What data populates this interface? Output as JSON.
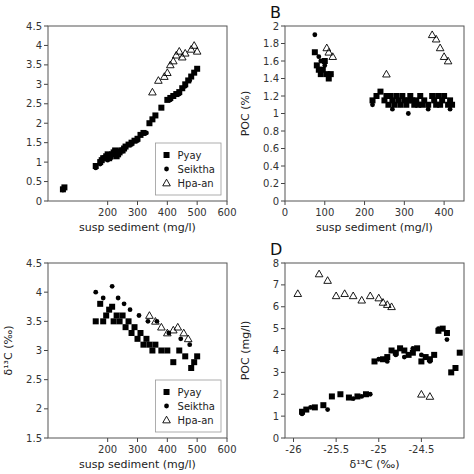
{
  "chart_data": [
    {
      "type": "scatter",
      "xlabel": "susp sediment (mg/l)",
      "xlim": [
        0,
        600
      ],
      "xticks": [
        200,
        300,
        400,
        500,
        600
      ],
      "ylim": [
        0,
        4.5
      ],
      "yticks": [
        0,
        0.5,
        1,
        1.5,
        2,
        2.5,
        3,
        3.5,
        4,
        4.5
      ],
      "grid": false,
      "legend": "lower right",
      "series": [
        {
          "name": "Pyay",
          "color": "#000000",
          "marker": "square",
          "x": [
            50,
            55,
            160,
            175,
            180,
            185,
            190,
            195,
            200,
            205,
            210,
            215,
            220,
            225,
            230,
            235,
            240,
            245,
            250,
            255,
            260,
            270,
            280,
            290,
            300,
            310,
            320,
            340,
            350,
            360,
            380,
            400,
            410,
            420,
            430,
            440,
            450,
            460,
            470,
            480,
            490,
            500
          ],
          "values": [
            0.3,
            0.35,
            0.9,
            1.0,
            1.05,
            1.1,
            1.1,
            1.15,
            1.2,
            1.1,
            1.15,
            1.2,
            1.25,
            1.3,
            1.15,
            1.2,
            1.25,
            1.3,
            1.3,
            1.35,
            1.4,
            1.45,
            1.5,
            1.55,
            1.6,
            1.7,
            1.75,
            2.0,
            2.1,
            2.2,
            2.4,
            2.6,
            2.65,
            2.7,
            2.75,
            2.8,
            2.9,
            3.0,
            3.1,
            3.2,
            3.3,
            3.4
          ]
        },
        {
          "name": "Seiktha",
          "color": "#000000",
          "marker": "circle",
          "x": [
            50,
            160,
            175,
            200,
            210,
            225,
            240,
            260,
            280,
            300,
            330,
            360,
            410,
            440,
            460,
            475
          ],
          "values": [
            0.28,
            0.85,
            0.95,
            1.05,
            1.1,
            1.25,
            1.28,
            1.38,
            1.45,
            1.55,
            1.75,
            2.2,
            2.6,
            2.75,
            2.95,
            3.1
          ]
        },
        {
          "name": "Hpa-an",
          "color": "#000000",
          "marker": "open-triangle",
          "x": [
            350,
            370,
            390,
            400,
            410,
            420,
            430,
            440,
            450,
            460,
            480,
            490,
            500
          ],
          "values": [
            2.8,
            3.1,
            3.2,
            3.3,
            3.5,
            3.6,
            3.75,
            3.85,
            3.7,
            3.8,
            3.9,
            4.0,
            3.85
          ]
        }
      ]
    },
    {
      "type": "scatter",
      "title": "B",
      "xlabel": "susp sediment (mg/l)",
      "ylabel": "POC (%)",
      "xlim": [
        0,
        450
      ],
      "xticks": [
        0,
        100,
        200,
        300,
        400
      ],
      "ylim": [
        0,
        2
      ],
      "yticks": [
        0,
        0.2,
        0.4,
        0.6,
        0.8,
        1,
        1.2,
        1.4,
        1.6,
        1.8,
        2
      ],
      "grid": false,
      "series": [
        {
          "name": "Pyay",
          "color": "#000000",
          "marker": "square",
          "x": [
            75,
            80,
            85,
            90,
            95,
            100,
            105,
            110,
            115,
            220,
            230,
            240,
            250,
            255,
            260,
            265,
            270,
            275,
            280,
            285,
            290,
            295,
            300,
            305,
            310,
            315,
            320,
            325,
            330,
            335,
            340,
            345,
            350,
            360,
            370,
            375,
            380,
            385,
            390,
            395,
            400,
            410,
            415,
            420
          ],
          "values": [
            1.7,
            1.55,
            1.5,
            1.45,
            1.5,
            1.6,
            1.45,
            1.4,
            1.45,
            1.15,
            1.2,
            1.25,
            1.15,
            1.2,
            1.1,
            1.2,
            1.15,
            1.1,
            1.2,
            1.15,
            1.1,
            1.2,
            1.15,
            1.1,
            1.15,
            1.2,
            1.15,
            1.1,
            1.15,
            1.1,
            1.2,
            1.1,
            1.15,
            1.1,
            1.2,
            1.15,
            1.1,
            1.2,
            1.1,
            1.15,
            1.2,
            1.1,
            1.15,
            1.1
          ]
        },
        {
          "name": "Seiktha",
          "color": "#000000",
          "marker": "circle",
          "x": [
            75,
            85,
            90,
            100,
            110,
            115,
            220,
            250,
            270,
            290,
            310,
            330,
            360,
            390,
            415
          ],
          "values": [
            1.9,
            1.65,
            1.6,
            1.55,
            1.45,
            1.45,
            1.1,
            1.15,
            1.05,
            1.1,
            1.0,
            1.1,
            1.05,
            1.1,
            1.05
          ]
        },
        {
          "name": "Hpa-an",
          "color": "#000000",
          "marker": "open-triangle",
          "x": [
            105,
            110,
            120,
            255,
            370,
            380,
            390,
            400,
            410
          ],
          "values": [
            1.75,
            1.7,
            1.65,
            1.45,
            1.9,
            1.85,
            1.75,
            1.65,
            1.6
          ]
        }
      ]
    },
    {
      "type": "scatter",
      "xlabel": "susp sediment (mg/l)",
      "ylabel": "δ¹³C (‰)",
      "xlim": [
        0,
        600
      ],
      "xticks": [
        200,
        300,
        400,
        500,
        600
      ],
      "ylim": [
        1.5,
        4.5
      ],
      "yticks": [
        1.5,
        2,
        2.5,
        3,
        3.5,
        4,
        4.5
      ],
      "grid": false,
      "legend": "lower right",
      "series": [
        {
          "name": "Pyay",
          "color": "#000000",
          "marker": "square",
          "x": [
            160,
            175,
            185,
            195,
            205,
            215,
            220,
            230,
            240,
            250,
            260,
            270,
            280,
            290,
            300,
            310,
            320,
            330,
            340,
            350,
            360,
            380,
            400,
            420,
            440,
            460,
            480,
            490,
            500
          ],
          "values": [
            3.5,
            3.8,
            3.5,
            3.6,
            3.7,
            3.75,
            3.5,
            3.6,
            3.5,
            3.6,
            3.4,
            3.5,
            3.3,
            3.4,
            3.2,
            3.3,
            3.1,
            3.2,
            3.1,
            3.0,
            3.1,
            3.0,
            3.0,
            2.8,
            3.0,
            2.9,
            2.7,
            2.8,
            2.9
          ]
        },
        {
          "name": "Seiktha",
          "color": "#000000",
          "marker": "circle",
          "x": [
            160,
            185,
            215,
            235,
            255,
            275,
            305,
            335,
            365,
            405,
            445,
            475
          ],
          "values": [
            4.0,
            3.9,
            4.1,
            3.9,
            3.8,
            3.7,
            3.6,
            3.5,
            3.5,
            3.3,
            3.2,
            3.1
          ]
        },
        {
          "name": "Hpa-an",
          "color": "#000000",
          "marker": "open-triangle",
          "x": [
            340,
            360,
            380,
            400,
            420,
            435,
            455,
            470
          ],
          "values": [
            3.6,
            3.5,
            3.4,
            3.3,
            3.35,
            3.4,
            3.3,
            3.2
          ]
        }
      ]
    },
    {
      "type": "scatter",
      "title": "D",
      "xlabel": "δ¹³C (‰)",
      "ylabel": "POC (mg/l)",
      "xlim": [
        -26.1,
        -24.0
      ],
      "xticks": [
        -26,
        -25.5,
        -25,
        -24.5
      ],
      "ylim": [
        0,
        8
      ],
      "yticks": [
        0,
        1,
        2,
        3,
        4,
        5,
        6,
        7,
        8
      ],
      "grid": false,
      "series": [
        {
          "name": "Pyay",
          "color": "#000000",
          "marker": "square",
          "x": [
            -25.9,
            -25.85,
            -25.75,
            -25.65,
            -25.55,
            -25.45,
            -25.35,
            -25.25,
            -25.15,
            -25.05,
            -24.95,
            -24.9,
            -24.85,
            -24.8,
            -24.75,
            -24.7,
            -24.65,
            -24.6,
            -24.55,
            -24.5,
            -24.45,
            -24.4,
            -24.35,
            -24.3,
            -24.25,
            -24.2,
            -24.15,
            -24.1,
            -24.05
          ],
          "values": [
            1.2,
            1.3,
            1.4,
            1.5,
            1.9,
            2.0,
            1.85,
            1.9,
            2.0,
            3.5,
            3.6,
            3.7,
            4.0,
            3.9,
            4.1,
            4.0,
            3.8,
            3.9,
            4.1,
            3.5,
            3.7,
            3.6,
            3.8,
            4.9,
            5.0,
            4.8,
            3.0,
            3.2,
            3.9
          ]
        },
        {
          "name": "Seiktha",
          "color": "#000000",
          "marker": "circle",
          "x": [
            -25.9,
            -25.8,
            -25.6,
            -25.3,
            -25.2,
            -25.1,
            -25.0,
            -24.9,
            -24.8,
            -24.7,
            -24.6,
            -24.5,
            -24.4,
            -24.3,
            -24.2
          ],
          "values": [
            1.1,
            1.4,
            1.3,
            1.8,
            1.9,
            2.0,
            3.6,
            3.5,
            3.8,
            3.7,
            4.1,
            3.8,
            3.5,
            5.0,
            4.5
          ]
        },
        {
          "name": "Hpa-an",
          "color": "#000000",
          "marker": "open-triangle",
          "x": [
            -25.95,
            -25.7,
            -25.6,
            -25.5,
            -25.4,
            -25.3,
            -25.2,
            -25.1,
            -25.0,
            -24.95,
            -24.9,
            -24.85,
            -24.5,
            -24.4
          ],
          "values": [
            6.6,
            7.5,
            7.2,
            6.5,
            6.6,
            6.5,
            6.3,
            6.5,
            6.4,
            6.2,
            6.1,
            6.0,
            2.0,
            1.9
          ]
        }
      ]
    }
  ]
}
